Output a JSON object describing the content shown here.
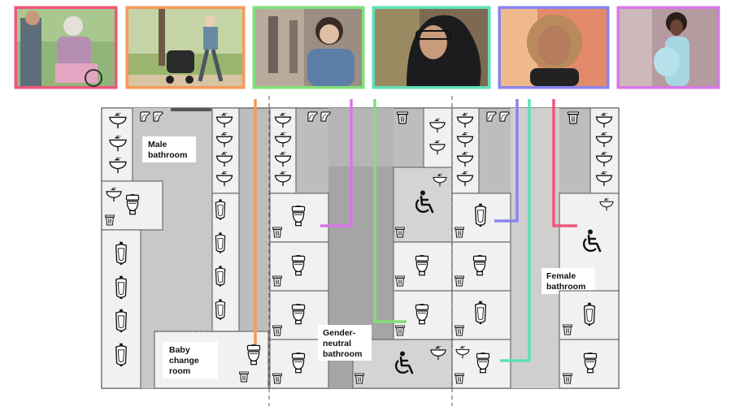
{
  "people": [
    {
      "name": "elderly-wheelchair-user",
      "color": "#f0567a",
      "icon": "person-photo"
    },
    {
      "name": "parent-with-stroller",
      "color": "#f5995a",
      "icon": "person-photo"
    },
    {
      "name": "young-woman-thinking",
      "color": "#7fe07a",
      "icon": "person-photo"
    },
    {
      "name": "woman-in-hijab",
      "color": "#5fe0b8",
      "icon": "person-photo"
    },
    {
      "name": "smiling-woman",
      "color": "#8a84ee",
      "icon": "person-photo"
    },
    {
      "name": "pregnant-woman",
      "color": "#d977e8",
      "icon": "person-photo"
    }
  ],
  "labels": {
    "male_l1": "Male",
    "male_l2": "bathroom",
    "baby_l1": "Baby",
    "baby_l2": "change",
    "baby_l3": "room",
    "gn_l1": "Gender-",
    "gn_l2": "neutral",
    "gn_l3": "bathroom",
    "female_l1": "Female",
    "female_l2": "bathroom"
  },
  "colors": {
    "floor_dark": "#a8a8a8",
    "floor_mid": "#c9c9c9",
    "floor_light": "#e3e3e3",
    "stall": "#f1f1f1",
    "wall": "#6e6e6e"
  }
}
